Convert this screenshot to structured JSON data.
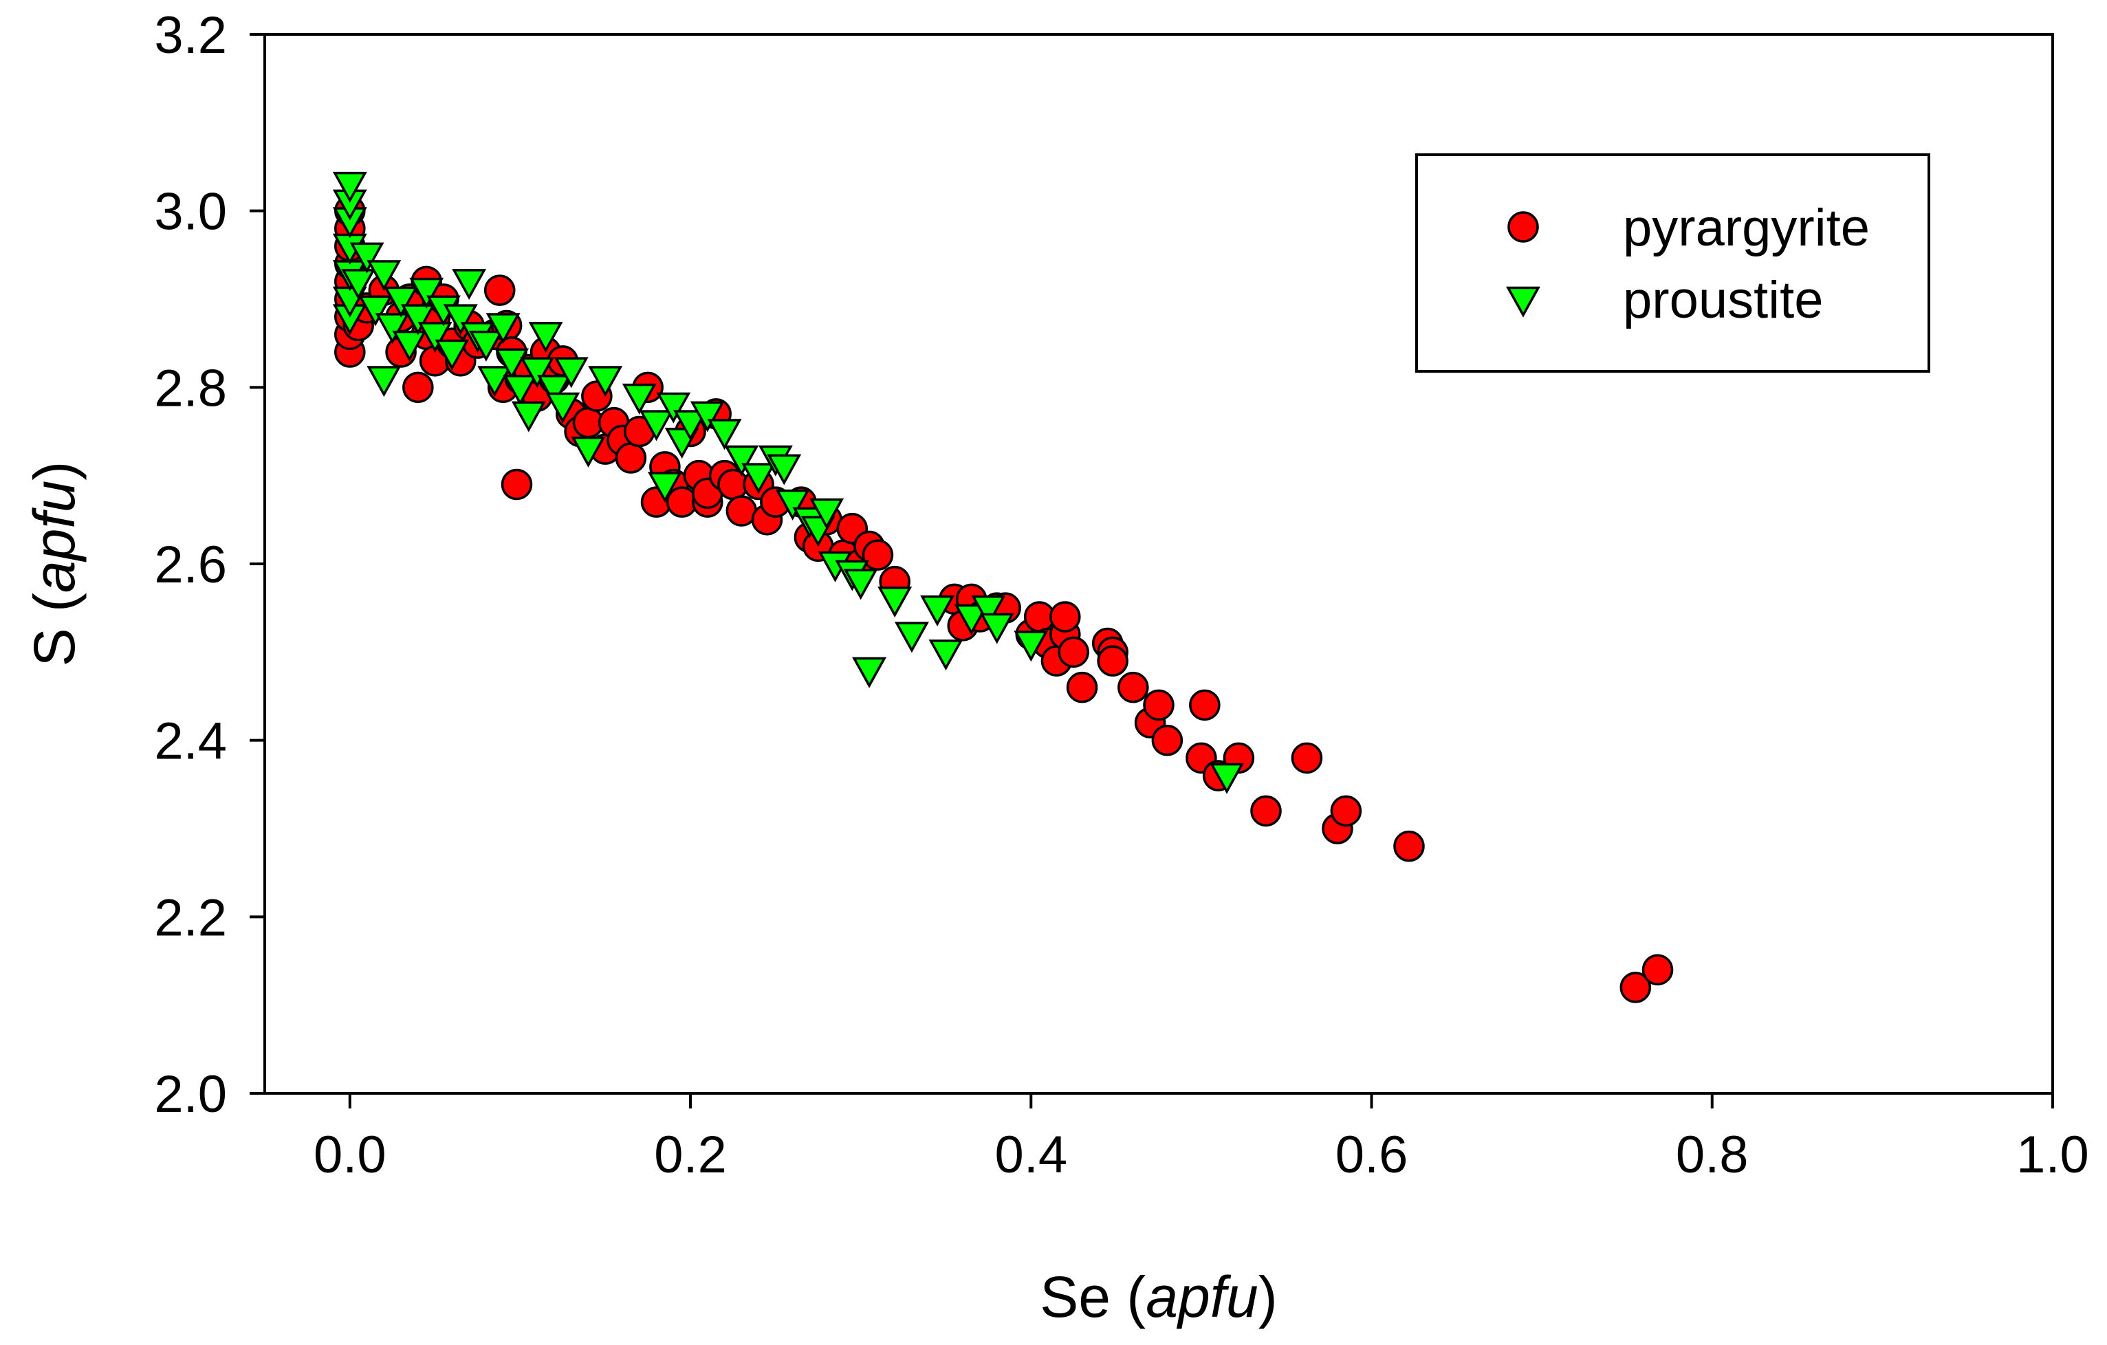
{
  "chart_data": {
    "type": "scatter",
    "title": "",
    "xlabel": {
      "main": "Se",
      "unit": "apfu"
    },
    "ylabel": {
      "main": "S",
      "unit": "apfu"
    },
    "xlim": [
      -0.05,
      1.0
    ],
    "ylim": [
      2.0,
      3.2
    ],
    "xticks": [
      "0.0",
      "0.2",
      "0.4",
      "0.6",
      "0.8",
      "1.0"
    ],
    "yticks": [
      "2.0",
      "2.2",
      "2.4",
      "2.6",
      "2.8",
      "3.0",
      "3.2"
    ],
    "legend_position": "top-right",
    "series": [
      {
        "name": "pyrargyrite",
        "marker": "circle",
        "color": "#ff0000",
        "points": [
          [
            0.0,
            2.84
          ],
          [
            0.0,
            2.86
          ],
          [
            0.0,
            2.88
          ],
          [
            0.0,
            2.9
          ],
          [
            0.0,
            2.92
          ],
          [
            0.0,
            2.94
          ],
          [
            0.0,
            2.96
          ],
          [
            0.0,
            2.98
          ],
          [
            0.0,
            3.0
          ],
          [
            0.005,
            2.87
          ],
          [
            0.01,
            2.89
          ],
          [
            0.02,
            2.91
          ],
          [
            0.03,
            2.84
          ],
          [
            0.03,
            2.88
          ],
          [
            0.035,
            2.9
          ],
          [
            0.04,
            2.8
          ],
          [
            0.045,
            2.86
          ],
          [
            0.045,
            2.92
          ],
          [
            0.05,
            2.83
          ],
          [
            0.05,
            2.88
          ],
          [
            0.055,
            2.9
          ],
          [
            0.06,
            2.85
          ],
          [
            0.065,
            2.83
          ],
          [
            0.07,
            2.87
          ],
          [
            0.075,
            2.85
          ],
          [
            0.085,
            2.86
          ],
          [
            0.088,
            2.91
          ],
          [
            0.09,
            2.8
          ],
          [
            0.092,
            2.87
          ],
          [
            0.095,
            2.84
          ],
          [
            0.098,
            2.69
          ],
          [
            0.1,
            2.81
          ],
          [
            0.105,
            2.82
          ],
          [
            0.11,
            2.79
          ],
          [
            0.115,
            2.84
          ],
          [
            0.12,
            2.81
          ],
          [
            0.125,
            2.83
          ],
          [
            0.13,
            2.77
          ],
          [
            0.135,
            2.75
          ],
          [
            0.14,
            2.76
          ],
          [
            0.145,
            2.79
          ],
          [
            0.15,
            2.73
          ],
          [
            0.155,
            2.76
          ],
          [
            0.16,
            2.74
          ],
          [
            0.165,
            2.72
          ],
          [
            0.17,
            2.75
          ],
          [
            0.175,
            2.8
          ],
          [
            0.18,
            2.67
          ],
          [
            0.185,
            2.71
          ],
          [
            0.19,
            2.69
          ],
          [
            0.195,
            2.67
          ],
          [
            0.2,
            2.75
          ],
          [
            0.205,
            2.7
          ],
          [
            0.21,
            2.67
          ],
          [
            0.21,
            2.68
          ],
          [
            0.215,
            2.77
          ],
          [
            0.22,
            2.7
          ],
          [
            0.225,
            2.69
          ],
          [
            0.23,
            2.66
          ],
          [
            0.24,
            2.69
          ],
          [
            0.245,
            2.65
          ],
          [
            0.25,
            2.67
          ],
          [
            0.265,
            2.67
          ],
          [
            0.27,
            2.63
          ],
          [
            0.275,
            2.62
          ],
          [
            0.28,
            2.65
          ],
          [
            0.29,
            2.61
          ],
          [
            0.295,
            2.64
          ],
          [
            0.3,
            2.6
          ],
          [
            0.305,
            2.62
          ],
          [
            0.31,
            2.61
          ],
          [
            0.32,
            2.58
          ],
          [
            0.355,
            2.56
          ],
          [
            0.36,
            2.53
          ],
          [
            0.365,
            2.56
          ],
          [
            0.37,
            2.54
          ],
          [
            0.38,
            2.55
          ],
          [
            0.385,
            2.55
          ],
          [
            0.4,
            2.52
          ],
          [
            0.405,
            2.54
          ],
          [
            0.41,
            2.51
          ],
          [
            0.415,
            2.49
          ],
          [
            0.42,
            2.52
          ],
          [
            0.42,
            2.54
          ],
          [
            0.425,
            2.5
          ],
          [
            0.43,
            2.46
          ],
          [
            0.445,
            2.51
          ],
          [
            0.448,
            2.5
          ],
          [
            0.448,
            2.49
          ],
          [
            0.46,
            2.46
          ],
          [
            0.47,
            2.42
          ],
          [
            0.475,
            2.44
          ],
          [
            0.48,
            2.4
          ],
          [
            0.5,
            2.38
          ],
          [
            0.502,
            2.44
          ],
          [
            0.51,
            2.36
          ],
          [
            0.522,
            2.38
          ],
          [
            0.538,
            2.32
          ],
          [
            0.562,
            2.38
          ],
          [
            0.58,
            2.3
          ],
          [
            0.585,
            2.32
          ],
          [
            0.622,
            2.28
          ],
          [
            0.755,
            2.12
          ],
          [
            0.768,
            2.14
          ]
        ]
      },
      {
        "name": "proustite",
        "marker": "triangle-down",
        "color": "#00ff00",
        "points": [
          [
            0.0,
            2.88
          ],
          [
            0.0,
            2.9
          ],
          [
            0.0,
            2.93
          ],
          [
            0.0,
            2.96
          ],
          [
            0.0,
            2.99
          ],
          [
            0.0,
            3.01
          ],
          [
            0.0,
            3.03
          ],
          [
            0.005,
            2.92
          ],
          [
            0.01,
            2.95
          ],
          [
            0.015,
            2.89
          ],
          [
            0.02,
            2.93
          ],
          [
            0.02,
            2.81
          ],
          [
            0.025,
            2.87
          ],
          [
            0.03,
            2.9
          ],
          [
            0.035,
            2.85
          ],
          [
            0.04,
            2.88
          ],
          [
            0.045,
            2.91
          ],
          [
            0.05,
            2.86
          ],
          [
            0.055,
            2.89
          ],
          [
            0.06,
            2.84
          ],
          [
            0.065,
            2.88
          ],
          [
            0.07,
            2.92
          ],
          [
            0.075,
            2.86
          ],
          [
            0.08,
            2.85
          ],
          [
            0.085,
            2.81
          ],
          [
            0.09,
            2.87
          ],
          [
            0.095,
            2.83
          ],
          [
            0.1,
            2.8
          ],
          [
            0.105,
            2.77
          ],
          [
            0.11,
            2.82
          ],
          [
            0.115,
            2.86
          ],
          [
            0.12,
            2.8
          ],
          [
            0.125,
            2.78
          ],
          [
            0.13,
            2.82
          ],
          [
            0.14,
            2.73
          ],
          [
            0.15,
            2.81
          ],
          [
            0.17,
            2.79
          ],
          [
            0.18,
            2.76
          ],
          [
            0.185,
            2.69
          ],
          [
            0.19,
            2.78
          ],
          [
            0.195,
            2.74
          ],
          [
            0.2,
            2.76
          ],
          [
            0.21,
            2.77
          ],
          [
            0.22,
            2.75
          ],
          [
            0.23,
            2.72
          ],
          [
            0.24,
            2.7
          ],
          [
            0.25,
            2.72
          ],
          [
            0.255,
            2.71
          ],
          [
            0.26,
            2.67
          ],
          [
            0.27,
            2.65
          ],
          [
            0.275,
            2.64
          ],
          [
            0.28,
            2.66
          ],
          [
            0.285,
            2.6
          ],
          [
            0.295,
            2.59
          ],
          [
            0.3,
            2.58
          ],
          [
            0.305,
            2.48
          ],
          [
            0.32,
            2.56
          ],
          [
            0.33,
            2.52
          ],
          [
            0.345,
            2.55
          ],
          [
            0.35,
            2.5
          ],
          [
            0.365,
            2.54
          ],
          [
            0.375,
            2.55
          ],
          [
            0.38,
            2.53
          ],
          [
            0.4,
            2.51
          ],
          [
            0.515,
            2.36
          ]
        ]
      }
    ]
  }
}
